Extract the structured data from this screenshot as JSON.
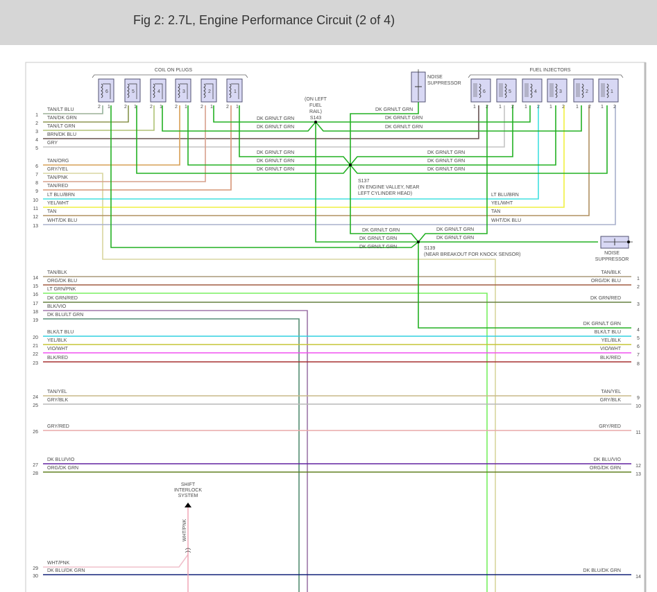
{
  "header": {
    "title": "Fig 2: 2.7L, Engine Performance Circuit (2 of 4)"
  },
  "coils": {
    "label": "COIL ON PLUGS",
    "numbers": [
      "6",
      "5",
      "4",
      "3",
      "2",
      "1"
    ],
    "pin_labels": [
      "2",
      "1"
    ]
  },
  "injectors": {
    "label": "FUEL INJECTORS",
    "numbers": [
      "6",
      "5",
      "4",
      "3",
      "2",
      "1"
    ],
    "pin_labels": [
      "1",
      "2"
    ]
  },
  "noise_suppressor_top": {
    "line1": "NOISE",
    "line2": "SUPPRESSOR"
  },
  "noise_suppressor_right": {
    "line1": "NOISE",
    "line2": "SUPPRESSOR"
  },
  "splices": {
    "s143": {
      "id": "S143",
      "note": [
        "(ON LEFT",
        "FUEL",
        "RAIL)"
      ]
    },
    "s137": {
      "id": "S137",
      "note": [
        "(IN ENGINE VALLEY, NEAR",
        "LEFT CYLINDER HEAD)"
      ]
    },
    "s139": {
      "id": "S139",
      "note": [
        "(NEAR BREAKOUT FOR KNOCK SENSOR)"
      ]
    }
  },
  "splice_wire_label": "DK GRN/LT GRN",
  "shift_interlock": {
    "lines": [
      "SHIFT",
      "INTERLOCK",
      "SYSTEM"
    ],
    "wire_label": "WHT/PNK"
  },
  "injector_wire_labels": [
    "LT BLU/BRN",
    "YEL/WHT",
    "TAN",
    "WHT/DK BLU"
  ],
  "left_wires": [
    {
      "n": "1",
      "label": "TAN/LT BLU",
      "color": "#c8a070",
      "stripe": "#40d0e0"
    },
    {
      "n": "2",
      "label": "TAN/DK GRN",
      "color": "#c4a068",
      "stripe": "#208020"
    },
    {
      "n": "3",
      "label": "TAN/LT GRN",
      "color": "#c8b080",
      "stripe": "#80e060"
    },
    {
      "n": "4",
      "label": "BRN/DK BLU",
      "color": "#7a5020",
      "stripe": "#4050a0"
    },
    {
      "n": "5",
      "label": "GRY",
      "color": "#c4c4c4",
      "stripe": "#c4c4c4"
    },
    {
      "n": "6",
      "label": "TAN/ORG",
      "color": "#c8a060",
      "stripe": "#f0a040"
    },
    {
      "n": "7",
      "label": "GRY/YEL",
      "color": "#d0d0b0",
      "stripe": "#e8e080"
    },
    {
      "n": "8",
      "label": "TAN/PNK",
      "color": "#c8a080",
      "stripe": "#f0a0a0"
    },
    {
      "n": "9",
      "label": "TAN/RED",
      "color": "#c8a070",
      "stripe": "#f08080"
    },
    {
      "n": "10",
      "label": "LT BLU/BRN",
      "color": "#40e0e0",
      "stripe": "#40e0e0"
    },
    {
      "n": "11",
      "label": "YEL/WHT",
      "color": "#f0f040",
      "stripe": "#f0f040"
    },
    {
      "n": "12",
      "label": "TAN",
      "color": "#b09060",
      "stripe": "#b09060"
    },
    {
      "n": "13",
      "label": "WHT/DK BLU",
      "color": "#a8b0cc",
      "stripe": "#a8b0cc"
    },
    {
      "n": "14",
      "label": "TAN/BLK",
      "color": "#a89878",
      "stripe": "#a89878"
    },
    {
      "n": "15",
      "label": "ORG/DK BLU",
      "color": "#e07020",
      "stripe": "#203080"
    },
    {
      "n": "16",
      "label": "LT GRN/PNK",
      "color": "#78f060",
      "stripe": "#78f060"
    },
    {
      "n": "17",
      "label": "DK GRN/RED",
      "color": "#208020",
      "stripe": "#f08080"
    },
    {
      "n": "18",
      "label": "BLK/VIO",
      "color": "#b070c0",
      "stripe": "#808080"
    },
    {
      "n": "19",
      "label": "DK BLU/LT GRN",
      "color": "#607090",
      "stripe": "#40c040"
    },
    {
      "n": "20",
      "label": "BLK/LT BLU",
      "color": "#30d0e0",
      "stripe": "#30d0e0"
    },
    {
      "n": "21",
      "label": "YEL/BLK",
      "color": "#d8d840",
      "stripe": "#a0a020"
    },
    {
      "n": "22",
      "label": "VIO/WHT",
      "color": "#f050f0",
      "stripe": "#f050f0"
    },
    {
      "n": "23",
      "label": "BLK/RED",
      "color": "#d02020",
      "stripe": "#505050"
    },
    {
      "n": "24",
      "label": "TAN/YEL",
      "color": "#c8b888",
      "stripe": "#c8b888"
    },
    {
      "n": "25",
      "label": "GRY/BLK",
      "color": "#b8b8b8",
      "stripe": "#b8b8b8"
    },
    {
      "n": "26",
      "label": "GRY/RED",
      "color": "#e8a8a8",
      "stripe": "#e8a8a8"
    },
    {
      "n": "27",
      "label": "DK BLU/VIO",
      "color": "#6020a0",
      "stripe": "#6020a0"
    },
    {
      "n": "28",
      "label": "ORG/DK GRN",
      "color": "#208020",
      "stripe": "#e08020"
    },
    {
      "n": "29",
      "label": "WHT/PNK",
      "color": "#f0c0cc",
      "stripe": "#f0c0cc"
    },
    {
      "n": "30",
      "label": "DK BLU/DK GRN",
      "color": "#102078",
      "stripe": "#102078"
    }
  ],
  "right_wires": [
    {
      "n": "1",
      "label": "TAN/BLK"
    },
    {
      "n": "2",
      "label": "ORG/DK BLU"
    },
    {
      "n": "3",
      "label": "DK GRN/RED"
    },
    {
      "n": "4",
      "label": "DK GRN/LT GRN"
    },
    {
      "n": "5",
      "label": "BLK/LT BLU"
    },
    {
      "n": "6",
      "label": "YEL/BLK"
    },
    {
      "n": "7",
      "label": "VIO/WHT"
    },
    {
      "n": "8",
      "label": "BLK/RED"
    },
    {
      "n": "9",
      "label": "TAN/YEL"
    },
    {
      "n": "10",
      "label": "GRY/BLK"
    },
    {
      "n": "11",
      "label": "GRY/RED"
    },
    {
      "n": "12",
      "label": "DK BLU/VIO"
    },
    {
      "n": "13",
      "label": "ORG/DK GRN"
    },
    {
      "n": "14",
      "label": "DK BLU/DK GRN"
    }
  ],
  "colors": {
    "splice_green": "#22b022",
    "component_fill": "#d8d8f4",
    "component_border": "#505070",
    "header_bg": "#d6d6d6"
  }
}
